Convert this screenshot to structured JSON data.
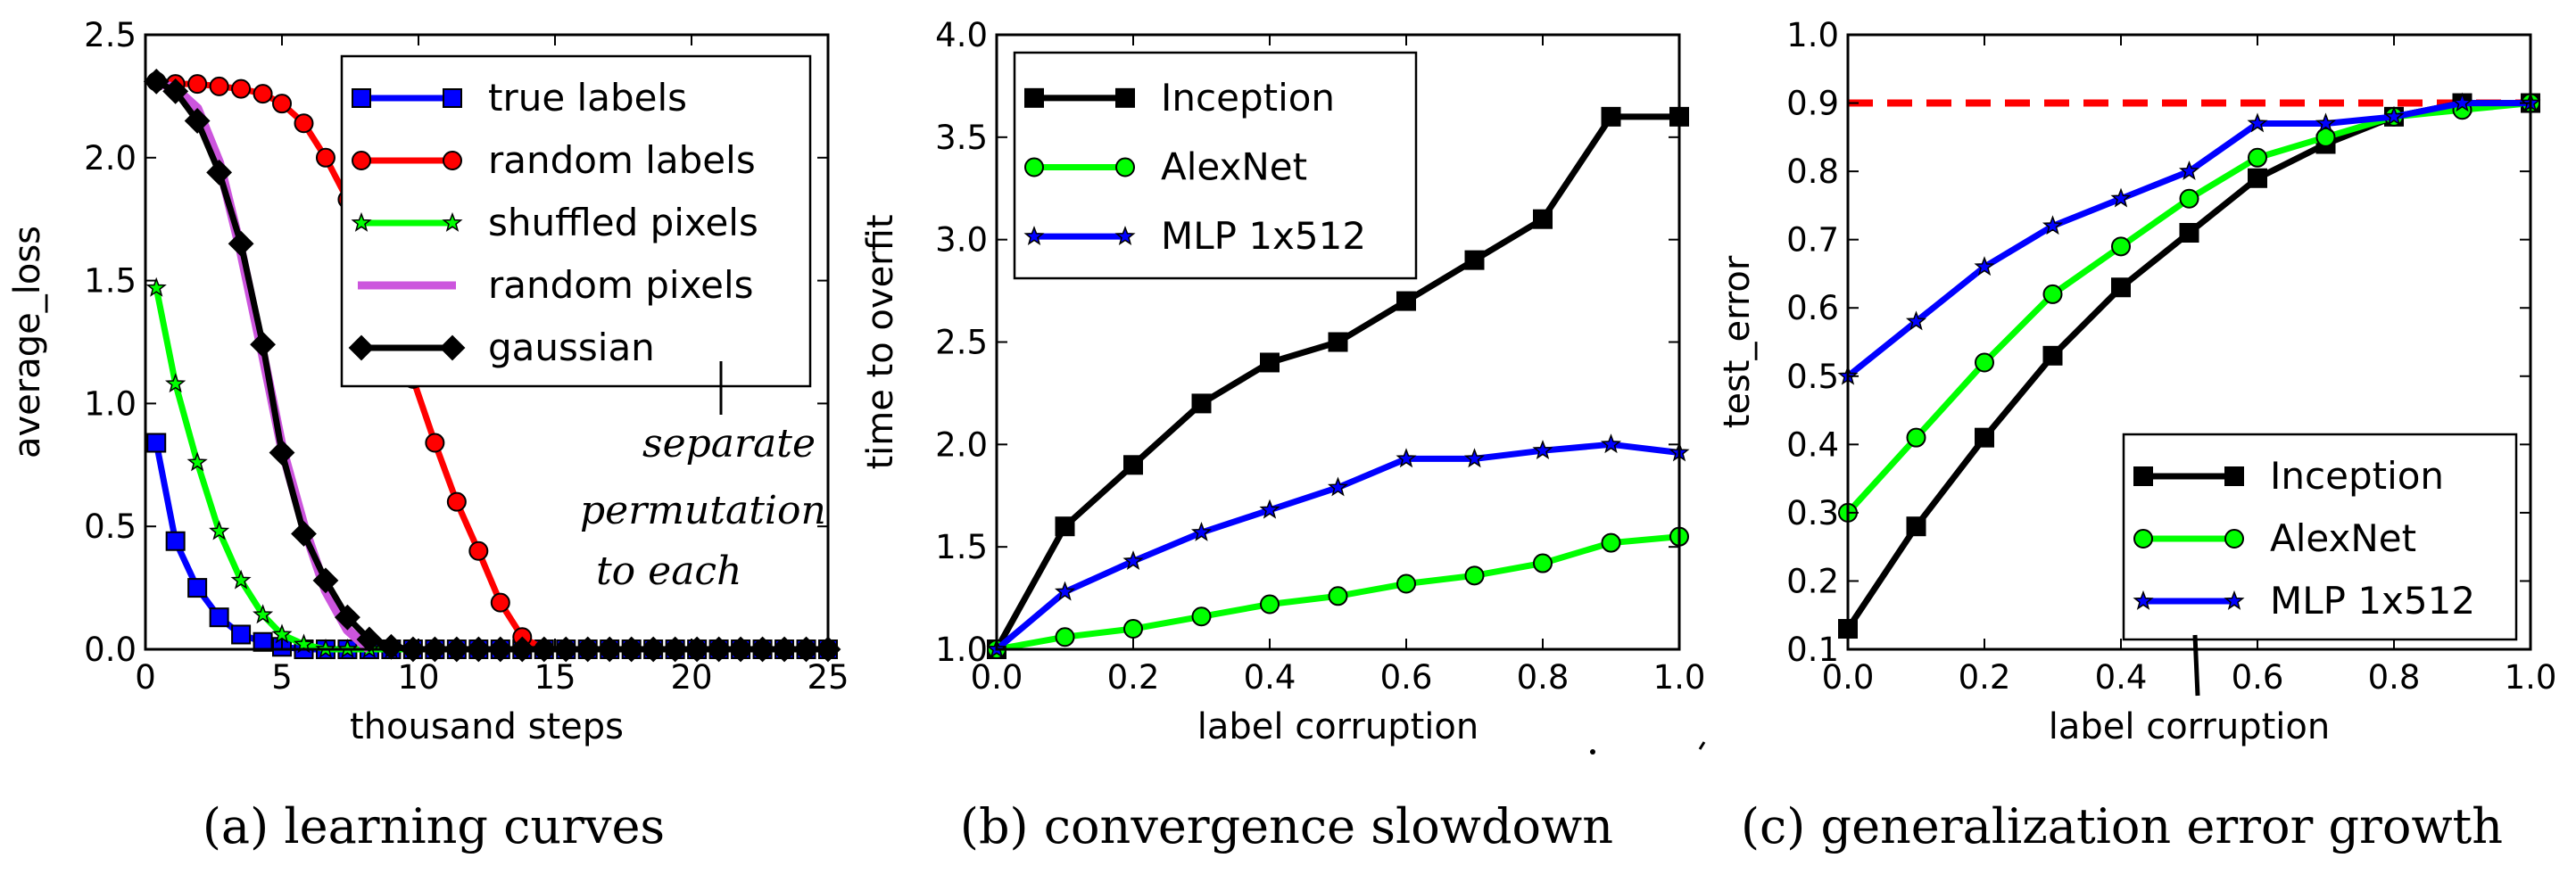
{
  "chart_data": [
    {
      "type": "line",
      "xlabel": "thousand steps",
      "ylabel": "average_loss",
      "xlim": [
        0,
        25
      ],
      "ylim": [
        0,
        2.5
      ],
      "xticks": [
        "0",
        "5",
        "10",
        "15",
        "20",
        "25"
      ],
      "yticks": [
        "0.0",
        "0.5",
        "1.0",
        "1.5",
        "2.0",
        "2.5"
      ],
      "caption": "(a) learning curves",
      "annotation": [
        "separate",
        "permutation",
        "to each"
      ],
      "legend_position": "top-right",
      "series": [
        {
          "name": "true labels",
          "color": "#0000ff",
          "marker": "square",
          "x": [
            0.4,
            1.1,
            1.9,
            2.7,
            3.5,
            4.3,
            5.0,
            5.8,
            6.6,
            7.4,
            8.2,
            9.0,
            9.8,
            10.6,
            11.4,
            12.2,
            13.0,
            13.8,
            14.6,
            15.4,
            16.2,
            17.0,
            17.8,
            18.6,
            19.4,
            20.2,
            21.0,
            21.8,
            22.6,
            23.4,
            24.2,
            25.0
          ],
          "y": [
            0.84,
            0.44,
            0.25,
            0.13,
            0.06,
            0.03,
            0.01,
            0,
            0,
            0,
            0,
            0,
            0,
            0,
            0,
            0,
            0,
            0,
            0,
            0,
            0,
            0,
            0,
            0,
            0,
            0,
            0,
            0,
            0,
            0,
            0,
            0
          ]
        },
        {
          "name": "random labels",
          "color": "#ff0000",
          "marker": "circle",
          "x": [
            0.4,
            1.1,
            1.9,
            2.7,
            3.5,
            4.3,
            5.0,
            5.8,
            6.6,
            7.4,
            8.2,
            9.0,
            9.8,
            10.6,
            11.4,
            12.2,
            13.0,
            13.8,
            14.6,
            15.4,
            16.2,
            17.0,
            17.8,
            18.6,
            19.4,
            20.2,
            21.0,
            21.8,
            22.6,
            23.4,
            24.2,
            25.0
          ],
          "y": [
            2.31,
            2.3,
            2.3,
            2.29,
            2.28,
            2.26,
            2.22,
            2.14,
            2.0,
            1.83,
            1.6,
            1.35,
            1.1,
            0.84,
            0.6,
            0.4,
            0.19,
            0.05,
            0,
            0,
            0,
            0,
            0,
            0,
            0,
            0,
            0,
            0,
            0,
            0,
            0,
            0
          ]
        },
        {
          "name": "shuffled pixels",
          "color": "#00ff00",
          "marker": "star",
          "x": [
            0.4,
            1.1,
            1.9,
            2.7,
            3.5,
            4.3,
            5.0,
            5.8,
            6.6,
            7.4,
            8.2,
            9.0,
            9.8,
            10.6,
            11.4,
            12.2,
            13.0,
            13.8,
            14.6,
            15.4,
            16.2,
            17.0,
            17.8,
            18.6,
            19.4,
            20.2,
            21.0,
            21.8,
            22.6,
            23.4,
            24.2,
            25.0
          ],
          "y": [
            1.47,
            1.08,
            0.76,
            0.48,
            0.28,
            0.14,
            0.06,
            0.02,
            0,
            0,
            0,
            0,
            0,
            0,
            0,
            0,
            0,
            0,
            0,
            0,
            0,
            0,
            0,
            0,
            0,
            0,
            0,
            0,
            0,
            0,
            0,
            0
          ]
        },
        {
          "name": "random pixels",
          "color": "#cc55dd",
          "marker": "none",
          "x": [
            0.4,
            1.1,
            1.9,
            2.7,
            3.5,
            4.3,
            5.0,
            5.8,
            6.6,
            7.4,
            8.2
          ],
          "y": [
            2.31,
            2.28,
            2.2,
            1.98,
            1.62,
            1.2,
            0.82,
            0.5,
            0.24,
            0.08,
            0
          ]
        },
        {
          "name": "gaussian",
          "color": "#000000",
          "marker": "diamond",
          "x": [
            0.4,
            1.1,
            1.9,
            2.7,
            3.5,
            4.3,
            5.0,
            5.8,
            6.6,
            7.4,
            8.2,
            9.0,
            9.8,
            10.6,
            11.4,
            12.2,
            13.0,
            13.8,
            14.6,
            15.4,
            16.2,
            17.0,
            17.8,
            18.6,
            19.4,
            20.2,
            21.0,
            21.8,
            22.6,
            23.4,
            24.2,
            25.0
          ],
          "y": [
            2.31,
            2.27,
            2.15,
            1.94,
            1.65,
            1.24,
            0.8,
            0.47,
            0.28,
            0.13,
            0.04,
            0.01,
            0,
            0,
            0,
            0,
            0,
            0,
            0,
            0,
            0,
            0,
            0,
            0,
            0,
            0,
            0,
            0,
            0,
            0,
            0,
            0
          ]
        }
      ]
    },
    {
      "type": "line",
      "xlabel": "label corruption",
      "ylabel": "time to overfit",
      "xlim": [
        0,
        1
      ],
      "ylim": [
        1,
        4
      ],
      "xticks": [
        "0.0",
        "0.2",
        "0.4",
        "0.6",
        "0.8",
        "1.0"
      ],
      "yticks": [
        "1.0",
        "1.5",
        "2.0",
        "2.5",
        "3.0",
        "3.5",
        "4.0"
      ],
      "caption": "(b) convergence slowdown",
      "legend_position": "top-left",
      "series": [
        {
          "name": "Inception",
          "color": "#000000",
          "marker": "square",
          "x": [
            0,
            0.1,
            0.2,
            0.3,
            0.4,
            0.5,
            0.6,
            0.7,
            0.8,
            0.9,
            1.0
          ],
          "y": [
            1.0,
            1.6,
            1.9,
            2.2,
            2.4,
            2.5,
            2.7,
            2.9,
            3.1,
            3.6,
            3.6
          ]
        },
        {
          "name": "AlexNet",
          "color": "#00ff00",
          "marker": "circle",
          "x": [
            0,
            0.1,
            0.2,
            0.3,
            0.4,
            0.5,
            0.6,
            0.7,
            0.8,
            0.9,
            1.0
          ],
          "y": [
            1.0,
            1.06,
            1.1,
            1.16,
            1.22,
            1.26,
            1.32,
            1.36,
            1.42,
            1.52,
            1.55
          ]
        },
        {
          "name": "MLP 1x512",
          "color": "#0000ff",
          "marker": "star",
          "x": [
            0,
            0.1,
            0.2,
            0.3,
            0.4,
            0.5,
            0.6,
            0.7,
            0.8,
            0.9,
            1.0
          ],
          "y": [
            1.0,
            1.28,
            1.43,
            1.57,
            1.68,
            1.79,
            1.93,
            1.93,
            1.97,
            2.0,
            1.96
          ]
        }
      ]
    },
    {
      "type": "line",
      "xlabel": "label corruption",
      "ylabel": "test_error",
      "xlim": [
        0,
        1
      ],
      "ylim": [
        0.1,
        1.0
      ],
      "xticks": [
        "0.0",
        "0.2",
        "0.4",
        "0.6",
        "0.8",
        "1.0"
      ],
      "yticks": [
        "0.1",
        "0.2",
        "0.3",
        "0.4",
        "0.5",
        "0.6",
        "0.7",
        "0.8",
        "0.9",
        "1.0"
      ],
      "caption": "(c) generalization error growth",
      "legend_position": "bottom-right",
      "reference_line": {
        "y": 0.9,
        "color": "#ff0000",
        "style": "dashed"
      },
      "series": [
        {
          "name": "Inception",
          "color": "#000000",
          "marker": "square",
          "x": [
            0,
            0.1,
            0.2,
            0.3,
            0.4,
            0.5,
            0.6,
            0.7,
            0.8,
            0.9,
            1.0
          ],
          "y": [
            0.13,
            0.28,
            0.41,
            0.53,
            0.63,
            0.71,
            0.79,
            0.84,
            0.88,
            0.9,
            0.9
          ]
        },
        {
          "name": "AlexNet",
          "color": "#00ff00",
          "marker": "circle",
          "x": [
            0,
            0.1,
            0.2,
            0.3,
            0.4,
            0.5,
            0.6,
            0.7,
            0.8,
            0.9,
            1.0
          ],
          "y": [
            0.3,
            0.41,
            0.52,
            0.62,
            0.69,
            0.76,
            0.82,
            0.85,
            0.88,
            0.89,
            0.9
          ]
        },
        {
          "name": "MLP 1x512",
          "color": "#0000ff",
          "marker": "star",
          "x": [
            0,
            0.1,
            0.2,
            0.3,
            0.4,
            0.5,
            0.6,
            0.7,
            0.8,
            0.9,
            1.0
          ],
          "y": [
            0.5,
            0.58,
            0.66,
            0.72,
            0.76,
            0.8,
            0.87,
            0.87,
            0.88,
            0.9,
            0.9
          ]
        }
      ]
    }
  ]
}
